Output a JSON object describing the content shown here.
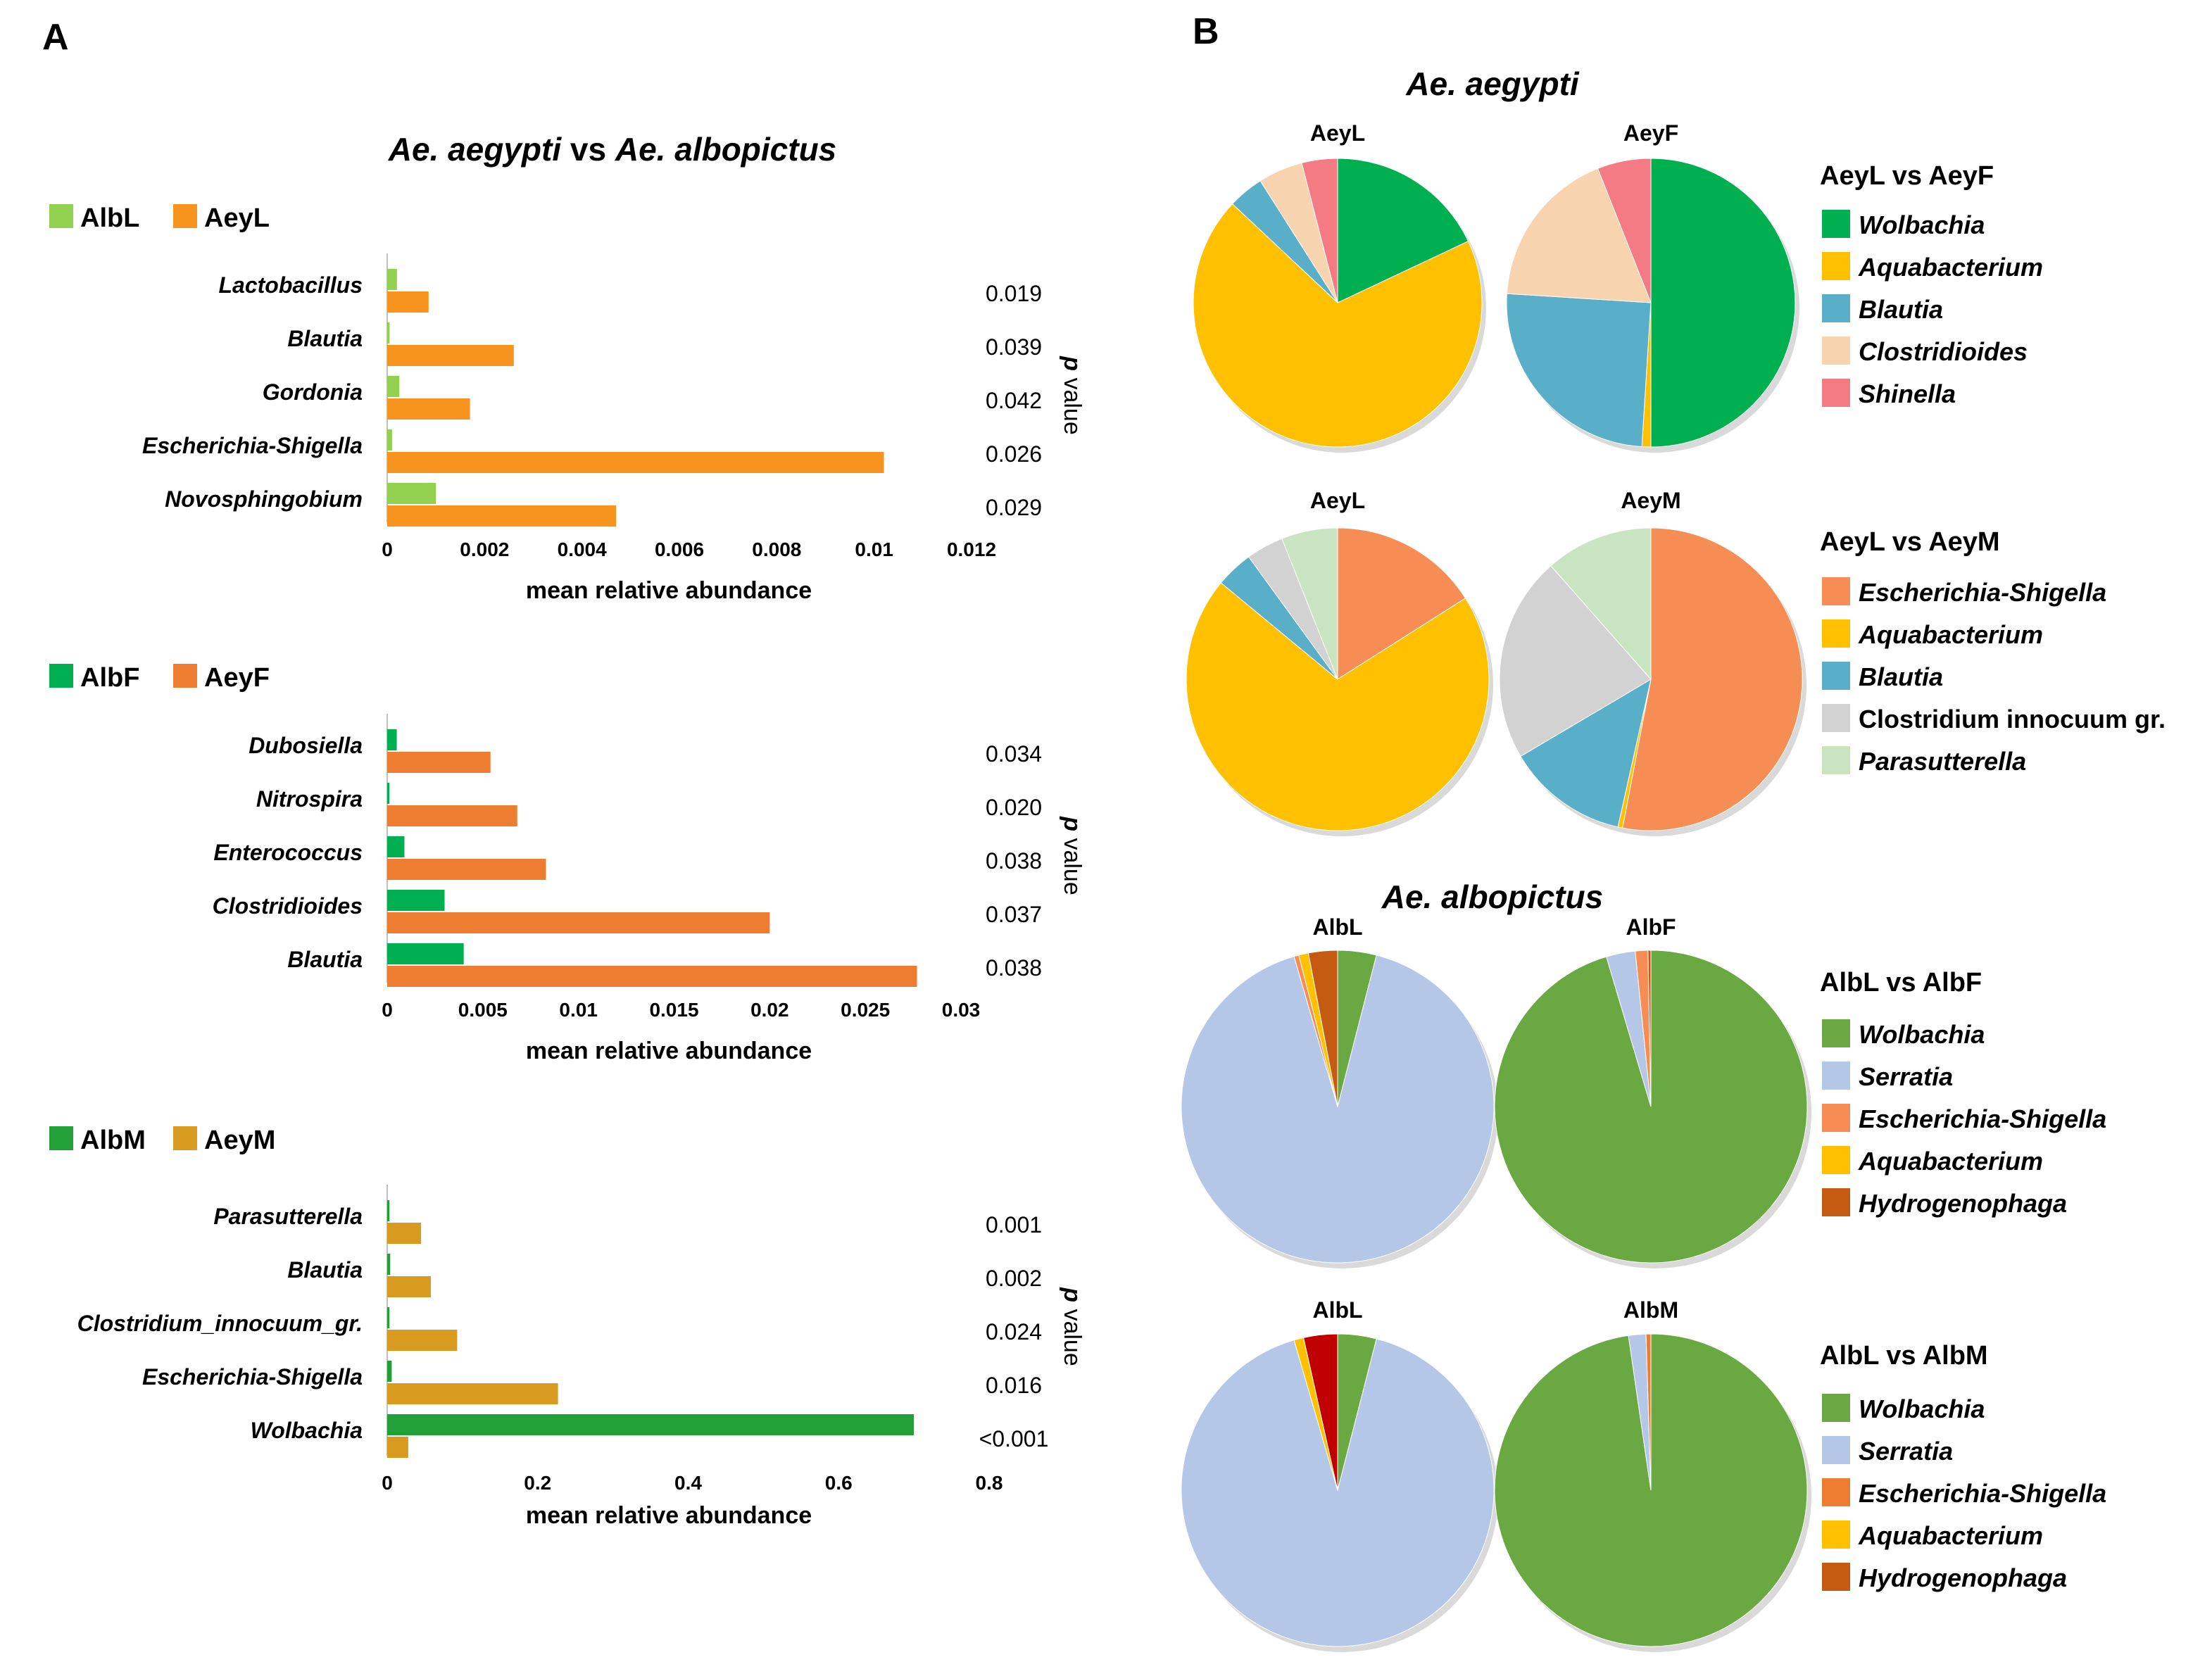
{
  "panel_labels": {
    "a": "A",
    "b": "B"
  },
  "chart_data": {
    "A": {
      "title_part1": "Ae. aegypti",
      "title_vs": " vs ",
      "title_part2": "Ae. albopictus",
      "pvalue_label_p": "p",
      "pvalue_label_rest": " value",
      "charts": [
        {
          "type": "bar",
          "orientation": "horizontal",
          "legend": [
            {
              "name": "AlbL",
              "color": "#92d050"
            },
            {
              "name": "AeyL",
              "color": "#f7941d"
            }
          ],
          "categories": [
            "Lactobacillus",
            "Blautia",
            "Gordonia",
            "Escherichia-Shigella",
            "Novosphingobium"
          ],
          "series": [
            {
              "name": "AlbL",
              "color": "#92d050",
              "values": [
                0.0002,
                5e-05,
                0.00025,
                0.0001,
                0.001
              ]
            },
            {
              "name": "AeyL",
              "color": "#f7941d",
              "values": [
                0.00085,
                0.0026,
                0.0017,
                0.0102,
                0.0047
              ]
            }
          ],
          "p_values": [
            "0.019",
            "0.039",
            "0.042",
            "0.026",
            "0.029"
          ],
          "xlim": [
            0,
            0.012
          ],
          "ticks": [
            "0",
            "0.002",
            "0.004",
            "0.006",
            "0.008",
            "0.01",
            "0.012"
          ],
          "xlabel": "mean relative abundance"
        },
        {
          "type": "bar",
          "orientation": "horizontal",
          "legend": [
            {
              "name": "AlbF",
              "color": "#00b050"
            },
            {
              "name": "AeyF",
              "color": "#ed7d31"
            }
          ],
          "categories": [
            "Dubosiella",
            "Nitrospira",
            "Enterococcus",
            "Clostridioides",
            "Blautia"
          ],
          "series": [
            {
              "name": "AlbF",
              "color": "#00b050",
              "values": [
                0.0005,
                0.0001,
                0.0009,
                0.003,
                0.004
              ]
            },
            {
              "name": "AeyF",
              "color": "#ed7d31",
              "values": [
                0.0054,
                0.0068,
                0.0083,
                0.02,
                0.0277
              ]
            }
          ],
          "p_values": [
            "0.034",
            "0.020",
            "0.038",
            "0.037",
            "0.038"
          ],
          "xlim": [
            0,
            0.03
          ],
          "ticks": [
            "0",
            "0.005",
            "0.01",
            "0.015",
            "0.02",
            "0.025",
            "0.03"
          ],
          "xlabel": "mean relative abundance"
        },
        {
          "type": "bar",
          "orientation": "horizontal",
          "legend": [
            {
              "name": "AlbM",
              "color": "#22a038"
            },
            {
              "name": "AeyM",
              "color": "#d99a20"
            }
          ],
          "categories": [
            "Parasutterella",
            "Blautia",
            "Clostridium_innocuum_gr.",
            "Escherichia-Shigella",
            "Wolbachia"
          ],
          "series": [
            {
              "name": "AlbM",
              "color": "#22a038",
              "values": [
                0.003,
                0.004,
                0.003,
                0.006,
                0.7
              ]
            },
            {
              "name": "AeyM",
              "color": "#d99a20",
              "values": [
                0.045,
                0.058,
                0.093,
                0.227,
                0.028
              ]
            }
          ],
          "p_values": [
            "0.001",
            "0.002",
            "0.024",
            "0.016",
            "<0.001"
          ],
          "xlim": [
            0,
            0.8
          ],
          "ticks": [
            "0",
            "0.2",
            "0.4",
            "0.6",
            "0.8"
          ],
          "xlabel": "mean relative abundance"
        }
      ]
    },
    "B": {
      "groups": [
        {
          "title": "Ae. aegypti",
          "rows": [
            {
              "legend_title": "AeyL vs AeyF",
              "legend": [
                {
                  "name": "Wolbachia",
                  "color": "#00b050",
                  "italic": true
                },
                {
                  "name": "Aquabacterium",
                  "color": "#ffc000",
                  "italic": true
                },
                {
                  "name": "Blautia",
                  "color": "#5aafc8",
                  "italic": true
                },
                {
                  "name": "Clostridioides",
                  "color": "#f8d3b0",
                  "italic": true
                },
                {
                  "name": "Shinella",
                  "color": "#f47a83",
                  "italic": true
                }
              ],
              "pies": [
                {
                  "type": "pie",
                  "label": "AeyL",
                  "values": [
                    18,
                    69,
                    4,
                    5,
                    4
                  ]
                },
                {
                  "type": "pie",
                  "label": "AeyF",
                  "values": [
                    50,
                    1,
                    25,
                    18,
                    6
                  ]
                }
              ]
            },
            {
              "legend_title": "AeyL vs AeyM",
              "legend": [
                {
                  "name": "Escherichia-Shigella",
                  "color": "#f68d55",
                  "italic": true
                },
                {
                  "name": "Aquabacterium",
                  "color": "#ffc000",
                  "italic": true
                },
                {
                  "name": "Blautia",
                  "color": "#5aafc8",
                  "italic": true
                },
                {
                  "name": "Clostridium innocuum gr.",
                  "color": "#d2d2d2",
                  "italic": false
                },
                {
                  "name": "Parasutterella",
                  "color": "#c8e4c0",
                  "italic": true
                }
              ],
              "pies": [
                {
                  "type": "pie",
                  "label": "AeyL",
                  "values": [
                    16,
                    70,
                    4,
                    4,
                    6
                  ]
                },
                {
                  "type": "pie",
                  "label": "AeyM",
                  "values": [
                    53,
                    0.5,
                    13,
                    22,
                    11.5
                  ]
                }
              ]
            }
          ]
        },
        {
          "title": "Ae. albopictus",
          "rows": [
            {
              "legend_title": "AlbL vs AlbF",
              "legend": [
                {
                  "name": "Wolbachia",
                  "color": "#6aa842",
                  "italic": true
                },
                {
                  "name": "Serratia",
                  "color": "#b4c7e7",
                  "italic": true
                },
                {
                  "name": "Escherichia-Shigella",
                  "color": "#f68d55",
                  "italic": true
                },
                {
                  "name": "Aquabacterium",
                  "color": "#ffc000",
                  "italic": true
                },
                {
                  "name": "Hydrogenophaga",
                  "color": "#c55a11",
                  "italic": true
                }
              ],
              "pies": [
                {
                  "type": "pie",
                  "label": "AlbL",
                  "values": [
                    4,
                    91.5,
                    0.5,
                    1,
                    3
                  ]
                },
                {
                  "type": "pie",
                  "label": "AlbF",
                  "values": [
                    95.4,
                    3,
                    1.3,
                    0,
                    0.3
                  ]
                }
              ]
            },
            {
              "legend_title": "AlbL vs AlbM",
              "legend": [
                {
                  "name": "Wolbachia",
                  "color": "#6aa842",
                  "italic": true
                },
                {
                  "name": "Serratia",
                  "color": "#b4c7e7",
                  "italic": true
                },
                {
                  "name": "Escherichia-Shigella",
                  "color": "#ed7d31",
                  "italic": true
                },
                {
                  "name": "Aquabacterium",
                  "color": "#ffc000",
                  "italic": true
                },
                {
                  "name": "Hydrogenophaga",
                  "color": "#c55a11",
                  "italic": true
                }
              ],
              "extra_slice": {
                "color": "#c00000"
              },
              "pies": [
                {
                  "type": "pie",
                  "label": "AlbL",
                  "values": [
                    4,
                    91.5,
                    0,
                    1,
                    0,
                    3.5
                  ]
                },
                {
                  "type": "pie",
                  "label": "AlbM",
                  "values": [
                    97.7,
                    1.8,
                    0.5,
                    0,
                    0
                  ]
                }
              ]
            }
          ]
        }
      ]
    }
  }
}
